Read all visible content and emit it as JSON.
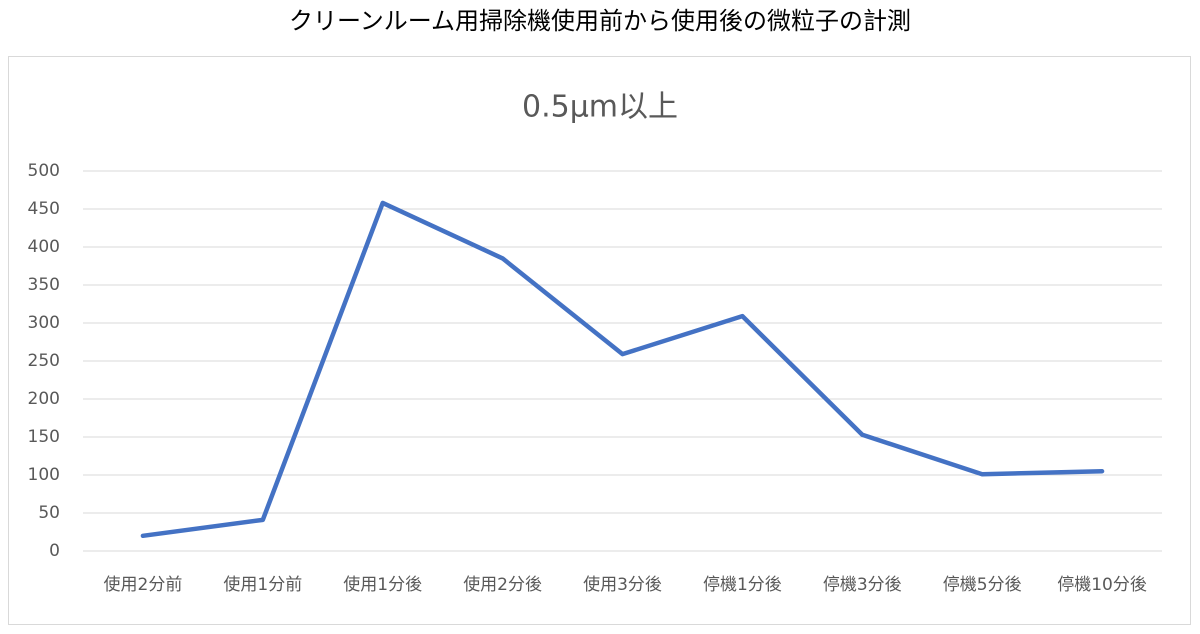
{
  "header": {
    "title": "クリーンルーム用掃除機使用前から使用後の微粒子の計測"
  },
  "chart_data": {
    "type": "line",
    "title": "0.5μm以上",
    "categories": [
      "使用2分前",
      "使用1分前",
      "使用1分後",
      "使用2分後",
      "使用3分後",
      "停機1分後",
      "停機3分後",
      "停機5分後",
      "停機10分後"
    ],
    "series": [
      {
        "name": "0.5μm以上",
        "color": "#4472c4",
        "values": [
          20,
          41,
          458,
          385,
          259,
          309,
          153,
          101,
          105
        ]
      }
    ],
    "ylim": [
      0,
      500
    ],
    "yticks": [
      0,
      50,
      100,
      150,
      200,
      250,
      300,
      350,
      400,
      450,
      500
    ],
    "grid": true,
    "legend": false
  }
}
